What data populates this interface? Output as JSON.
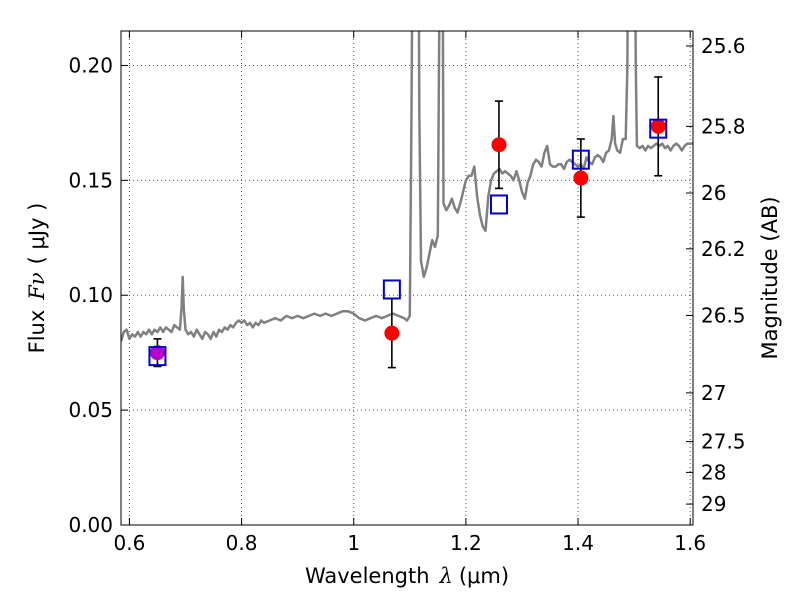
{
  "chart_data": {
    "type": "scatter",
    "xlabel_text": "Wavelength",
    "xlabel_symbol": "λ",
    "xlabel_unit": "(μm)",
    "ylabel_text": "Flux",
    "ylabel_symbol": "Fν",
    "ylabel_unit": "( μJy )",
    "y2label": "Magnitude (AB)",
    "xlim": [
      0.585,
      1.605
    ],
    "ylim": [
      0.0,
      0.215
    ],
    "grid": true,
    "colors": {
      "spectrum": "#808080",
      "photometry": "#ff0000",
      "model": "#0000c8",
      "magenta": "#bb00cc",
      "errorbar": "#000000",
      "gridline": "#555555"
    },
    "x_ticks": [
      {
        "value": 0.6,
        "label": "0.6"
      },
      {
        "value": 0.8,
        "label": "0.8"
      },
      {
        "value": 1.0,
        "label": "1"
      },
      {
        "value": 1.2,
        "label": "1.2"
      },
      {
        "value": 1.4,
        "label": "1.4"
      },
      {
        "value": 1.6,
        "label": "1.6"
      }
    ],
    "y_ticks": [
      {
        "value": 0.0,
        "label": "0.00"
      },
      {
        "value": 0.05,
        "label": "0.05"
      },
      {
        "value": 0.1,
        "label": "0.10"
      },
      {
        "value": 0.15,
        "label": "0.15"
      },
      {
        "value": 0.2,
        "label": "0.20"
      }
    ],
    "y2_ticks": [
      {
        "label": "25.6",
        "flux": 0.2085
      },
      {
        "label": "25.8",
        "flux": 0.1735
      },
      {
        "label": "26",
        "flux": 0.1445
      },
      {
        "label": "26.2",
        "flux": 0.1202
      },
      {
        "label": "26.5",
        "flux": 0.0912
      },
      {
        "label": "27",
        "flux": 0.0575
      },
      {
        "label": "27.5",
        "flux": 0.0363
      },
      {
        "label": "28",
        "flux": 0.0229
      },
      {
        "label": "29",
        "flux": 0.0091
      }
    ],
    "photometry": [
      {
        "x": 1.068,
        "y": 0.0835,
        "err": 0.015
      },
      {
        "x": 1.259,
        "y": 0.1655,
        "err": 0.019
      },
      {
        "x": 1.405,
        "y": 0.151,
        "err": 0.017
      },
      {
        "x": 1.543,
        "y": 0.1735,
        "err": 0.0215
      }
    ],
    "magenta_point": {
      "x": 0.65,
      "y": 0.075,
      "err": 0.006
    },
    "model_points": [
      {
        "x": 0.65,
        "y": 0.0735
      },
      {
        "x": 1.068,
        "y": 0.1025
      },
      {
        "x": 1.259,
        "y": 0.1395
      },
      {
        "x": 1.405,
        "y": 0.159
      },
      {
        "x": 1.543,
        "y": 0.1725
      }
    ],
    "spectrum": [
      [
        0.585,
        0.08
      ],
      [
        0.59,
        0.084
      ],
      [
        0.595,
        0.085
      ],
      [
        0.6,
        0.081
      ],
      [
        0.605,
        0.083
      ],
      [
        0.61,
        0.082
      ],
      [
        0.615,
        0.084
      ],
      [
        0.62,
        0.082
      ],
      [
        0.625,
        0.084
      ],
      [
        0.63,
        0.083
      ],
      [
        0.635,
        0.085
      ],
      [
        0.64,
        0.083
      ],
      [
        0.645,
        0.085
      ],
      [
        0.65,
        0.084
      ],
      [
        0.655,
        0.086
      ],
      [
        0.66,
        0.084
      ],
      [
        0.665,
        0.086
      ],
      [
        0.67,
        0.085
      ],
      [
        0.675,
        0.084
      ],
      [
        0.68,
        0.087
      ],
      [
        0.685,
        0.086
      ],
      [
        0.69,
        0.085
      ],
      [
        0.693,
        0.095
      ],
      [
        0.695,
        0.108
      ],
      [
        0.697,
        0.094
      ],
      [
        0.7,
        0.085
      ],
      [
        0.705,
        0.083
      ],
      [
        0.71,
        0.084
      ],
      [
        0.715,
        0.082
      ],
      [
        0.72,
        0.085
      ],
      [
        0.725,
        0.083
      ],
      [
        0.73,
        0.081
      ],
      [
        0.735,
        0.084
      ],
      [
        0.74,
        0.083
      ],
      [
        0.745,
        0.081
      ],
      [
        0.75,
        0.084
      ],
      [
        0.755,
        0.082
      ],
      [
        0.76,
        0.085
      ],
      [
        0.765,
        0.084
      ],
      [
        0.77,
        0.086
      ],
      [
        0.775,
        0.085
      ],
      [
        0.78,
        0.087
      ],
      [
        0.785,
        0.086
      ],
      [
        0.79,
        0.088
      ],
      [
        0.795,
        0.089
      ],
      [
        0.8,
        0.088
      ],
      [
        0.805,
        0.089
      ],
      [
        0.81,
        0.087
      ],
      [
        0.815,
        0.088
      ],
      [
        0.82,
        0.086
      ],
      [
        0.825,
        0.088
      ],
      [
        0.83,
        0.087
      ],
      [
        0.835,
        0.089
      ],
      [
        0.84,
        0.088
      ],
      [
        0.85,
        0.089
      ],
      [
        0.86,
        0.09
      ],
      [
        0.87,
        0.089
      ],
      [
        0.88,
        0.091
      ],
      [
        0.89,
        0.09
      ],
      [
        0.9,
        0.091
      ],
      [
        0.91,
        0.09
      ],
      [
        0.92,
        0.091
      ],
      [
        0.93,
        0.092
      ],
      [
        0.94,
        0.091
      ],
      [
        0.95,
        0.092
      ],
      [
        0.96,
        0.091
      ],
      [
        0.97,
        0.092
      ],
      [
        0.98,
        0.093
      ],
      [
        0.99,
        0.093
      ],
      [
        1.0,
        0.092
      ],
      [
        1.01,
        0.09
      ],
      [
        1.02,
        0.089
      ],
      [
        1.03,
        0.09
      ],
      [
        1.04,
        0.091
      ],
      [
        1.05,
        0.09
      ],
      [
        1.06,
        0.091
      ],
      [
        1.07,
        0.092
      ],
      [
        1.08,
        0.091
      ],
      [
        1.09,
        0.09
      ],
      [
        1.095,
        0.089
      ],
      [
        1.1,
        0.091
      ],
      [
        1.103,
        0.18
      ],
      [
        1.105,
        0.26
      ],
      [
        1.107,
        0.3
      ],
      [
        1.115,
        0.3
      ],
      [
        1.117,
        0.18
      ],
      [
        1.12,
        0.115
      ],
      [
        1.125,
        0.108
      ],
      [
        1.13,
        0.112
      ],
      [
        1.135,
        0.118
      ],
      [
        1.14,
        0.124
      ],
      [
        1.145,
        0.121
      ],
      [
        1.15,
        0.126
      ],
      [
        1.155,
        0.3
      ],
      [
        1.158,
        0.3
      ],
      [
        1.16,
        0.14
      ],
      [
        1.165,
        0.137
      ],
      [
        1.17,
        0.139
      ],
      [
        1.175,
        0.142
      ],
      [
        1.18,
        0.138
      ],
      [
        1.185,
        0.136
      ],
      [
        1.19,
        0.14
      ],
      [
        1.195,
        0.145
      ],
      [
        1.2,
        0.15
      ],
      [
        1.205,
        0.152
      ],
      [
        1.21,
        0.152
      ],
      [
        1.215,
        0.156
      ],
      [
        1.22,
        0.143
      ],
      [
        1.225,
        0.135
      ],
      [
        1.23,
        0.13
      ],
      [
        1.235,
        0.128
      ],
      [
        1.24,
        0.143
      ],
      [
        1.245,
        0.15
      ],
      [
        1.25,
        0.153
      ],
      [
        1.255,
        0.154
      ],
      [
        1.26,
        0.155
      ],
      [
        1.265,
        0.153
      ],
      [
        1.27,
        0.154
      ],
      [
        1.275,
        0.153
      ],
      [
        1.28,
        0.152
      ],
      [
        1.285,
        0.15
      ],
      [
        1.29,
        0.154
      ],
      [
        1.295,
        0.15
      ],
      [
        1.3,
        0.145
      ],
      [
        1.305,
        0.142
      ],
      [
        1.31,
        0.149
      ],
      [
        1.315,
        0.152
      ],
      [
        1.32,
        0.157
      ],
      [
        1.325,
        0.159
      ],
      [
        1.33,
        0.158
      ],
      [
        1.335,
        0.156
      ],
      [
        1.34,
        0.162
      ],
      [
        1.345,
        0.165
      ],
      [
        1.35,
        0.157
      ],
      [
        1.355,
        0.156
      ],
      [
        1.36,
        0.156
      ],
      [
        1.365,
        0.157
      ],
      [
        1.37,
        0.157
      ],
      [
        1.375,
        0.155
      ],
      [
        1.38,
        0.158
      ],
      [
        1.385,
        0.159
      ],
      [
        1.39,
        0.158
      ],
      [
        1.395,
        0.157
      ],
      [
        1.4,
        0.156
      ],
      [
        1.405,
        0.157
      ],
      [
        1.41,
        0.155
      ],
      [
        1.415,
        0.16
      ],
      [
        1.42,
        0.158
      ],
      [
        1.425,
        0.157
      ],
      [
        1.43,
        0.16
      ],
      [
        1.435,
        0.161
      ],
      [
        1.44,
        0.16
      ],
      [
        1.445,
        0.158
      ],
      [
        1.45,
        0.162
      ],
      [
        1.455,
        0.163
      ],
      [
        1.46,
        0.168
      ],
      [
        1.463,
        0.178
      ],
      [
        1.466,
        0.166
      ],
      [
        1.47,
        0.163
      ],
      [
        1.475,
        0.162
      ],
      [
        1.48,
        0.168
      ],
      [
        1.485,
        0.168
      ],
      [
        1.488,
        0.2
      ],
      [
        1.49,
        0.3
      ],
      [
        1.5,
        0.3
      ],
      [
        1.503,
        0.2
      ],
      [
        1.505,
        0.165
      ],
      [
        1.51,
        0.164
      ],
      [
        1.515,
        0.165
      ],
      [
        1.52,
        0.163
      ],
      [
        1.525,
        0.165
      ],
      [
        1.53,
        0.164
      ],
      [
        1.535,
        0.165
      ],
      [
        1.54,
        0.166
      ],
      [
        1.545,
        0.165
      ],
      [
        1.55,
        0.166
      ],
      [
        1.555,
        0.164
      ],
      [
        1.56,
        0.165
      ],
      [
        1.565,
        0.163
      ],
      [
        1.57,
        0.165
      ],
      [
        1.575,
        0.166
      ],
      [
        1.58,
        0.165
      ],
      [
        1.585,
        0.163
      ],
      [
        1.59,
        0.165
      ],
      [
        1.595,
        0.166
      ],
      [
        1.6,
        0.166
      ],
      [
        1.605,
        0.166
      ]
    ]
  }
}
